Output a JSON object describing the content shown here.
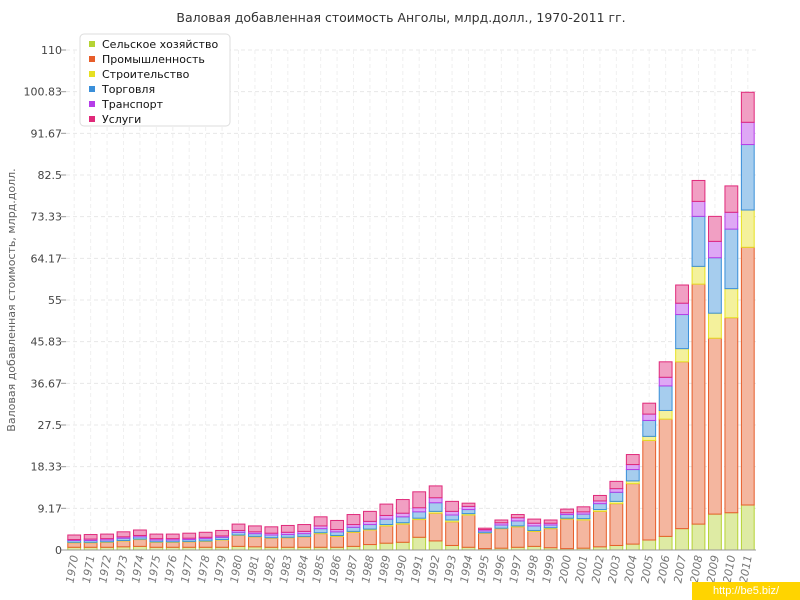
{
  "chart_data": {
    "type": "bar",
    "stacked": true,
    "title": "Валовая добавленная стоимость Анголы, млрд.долл., 1970-2011 гг.",
    "ylabel": "Валовая добавленная стоимость, млрд.долл.",
    "xlabel": "",
    "ylim": [
      0,
      110
    ],
    "yticks": [
      "0",
      "9.17",
      "18.33",
      "27.5",
      "36.67",
      "45.83",
      "55",
      "64.17",
      "73.33",
      "82.5",
      "91.67",
      "100.83",
      "110"
    ],
    "grid": true,
    "legend_position": "top-left",
    "categories": [
      "1970",
      "1971",
      "1972",
      "1973",
      "1974",
      "1975",
      "1976",
      "1977",
      "1978",
      "1979",
      "1980",
      "1981",
      "1982",
      "1983",
      "1984",
      "1985",
      "1986",
      "1987",
      "1988",
      "1989",
      "1990",
      "1991",
      "1992",
      "1993",
      "1994",
      "1995",
      "1996",
      "1997",
      "1998",
      "1999",
      "2000",
      "2001",
      "2002",
      "2003",
      "2004",
      "2005",
      "2006",
      "2007",
      "2008",
      "2009",
      "2010",
      "2011"
    ],
    "series": [
      {
        "name": "Сельское хозяйство",
        "color": "#b5d334",
        "values": [
          0.6,
          0.6,
          0.6,
          0.7,
          0.8,
          0.6,
          0.6,
          0.6,
          0.6,
          0.6,
          0.8,
          0.7,
          0.6,
          0.6,
          0.6,
          0.6,
          0.6,
          0.8,
          1.2,
          1.5,
          1.7,
          2.8,
          2.0,
          1.0,
          0.6,
          0.3,
          0.4,
          0.6,
          0.8,
          0.5,
          0.3,
          0.4,
          0.7,
          1.0,
          1.3,
          2.2,
          3.0,
          4.7,
          5.7,
          7.9,
          8.2,
          9.9
        ]
      },
      {
        "name": "Промышленность",
        "color": "#e75d2a",
        "values": [
          1.0,
          1.0,
          1.1,
          1.3,
          1.5,
          1.1,
          1.1,
          1.2,
          1.3,
          1.6,
          2.4,
          2.2,
          2.0,
          2.1,
          2.3,
          3.0,
          2.4,
          3.1,
          3.2,
          3.8,
          4.0,
          3.9,
          6.1,
          5.2,
          7.1,
          3.4,
          4.3,
          4.5,
          3.3,
          4.2,
          6.5,
          6.2,
          7.8,
          9.2,
          13.3,
          21.9,
          25.8,
          36.7,
          52.8,
          38.7,
          42.9,
          56.7
        ]
      },
      {
        "name": "Строительство",
        "color": "#e6e022",
        "values": [
          0.1,
          0.1,
          0.1,
          0.1,
          0.1,
          0.1,
          0.1,
          0.1,
          0.1,
          0.1,
          0.1,
          0.1,
          0.1,
          0.1,
          0.1,
          0.2,
          0.2,
          0.2,
          0.2,
          0.3,
          0.3,
          0.3,
          0.4,
          0.4,
          0.3,
          0.1,
          0.1,
          0.2,
          0.2,
          0.2,
          0.2,
          0.3,
          0.4,
          0.5,
          0.6,
          0.9,
          1.9,
          2.9,
          3.9,
          5.5,
          6.4,
          8.2
        ]
      },
      {
        "name": "Торговля",
        "color": "#3a8fd9",
        "values": [
          0.4,
          0.4,
          0.4,
          0.5,
          0.5,
          0.4,
          0.4,
          0.4,
          0.5,
          0.5,
          0.6,
          0.6,
          0.6,
          0.6,
          0.6,
          0.9,
          0.8,
          0.9,
          1.0,
          1.2,
          1.3,
          1.4,
          1.9,
          1.1,
          0.9,
          0.4,
          0.7,
          1.1,
          1.0,
          0.6,
          0.8,
          1.0,
          1.3,
          2.0,
          2.5,
          3.5,
          5.4,
          7.5,
          11.0,
          12.2,
          13.1,
          14.4
        ]
      },
      {
        "name": "Транспорт",
        "color": "#b53de8",
        "values": [
          0.2,
          0.3,
          0.3,
          0.3,
          0.3,
          0.3,
          0.3,
          0.3,
          0.3,
          0.3,
          0.4,
          0.4,
          0.4,
          0.5,
          0.5,
          0.6,
          0.5,
          0.6,
          0.7,
          0.8,
          0.8,
          0.9,
          1.1,
          0.8,
          0.7,
          0.3,
          0.5,
          0.7,
          0.6,
          0.4,
          0.4,
          0.5,
          0.6,
          0.8,
          1.1,
          1.4,
          1.9,
          2.5,
          3.3,
          3.6,
          3.7,
          4.9
        ]
      },
      {
        "name": "Услуги",
        "color": "#e0297a",
        "values": [
          1.0,
          1.0,
          1.0,
          1.1,
          1.2,
          1.0,
          1.0,
          1.1,
          1.1,
          1.2,
          1.4,
          1.3,
          1.4,
          1.5,
          1.5,
          2.0,
          2.0,
          2.2,
          2.2,
          2.5,
          3.0,
          3.5,
          2.6,
          2.2,
          0.7,
          0.3,
          0.6,
          0.7,
          0.9,
          0.7,
          0.8,
          1.1,
          1.2,
          1.6,
          2.2,
          2.4,
          3.4,
          4.0,
          4.6,
          5.5,
          5.8,
          6.6
        ]
      }
    ]
  },
  "watermark": "http://be5.biz/"
}
